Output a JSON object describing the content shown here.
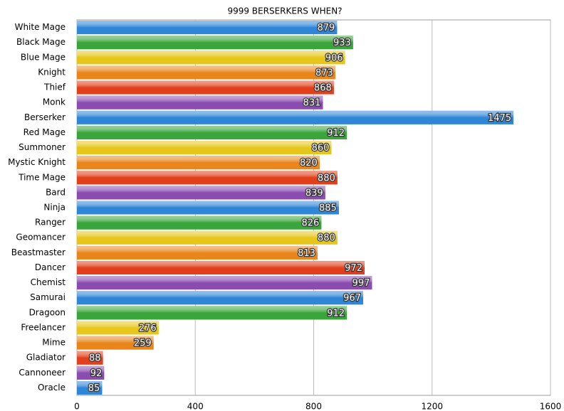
{
  "chart_data": {
    "type": "hbar",
    "title": "9999 BERSERKERS WHEN?",
    "categories": [
      "White Mage",
      "Black Mage",
      "Blue Mage",
      "Knight",
      "Thief",
      "Monk",
      "Berserker",
      "Red Mage",
      "Summoner",
      "Mystic Knight",
      "Time Mage",
      "Bard",
      "Ninja",
      "Ranger",
      "Geomancer",
      "Beastmaster",
      "Dancer",
      "Chemist",
      "Samurai",
      "Dragoon",
      "Freelancer",
      "Mime",
      "Gladiator",
      "Cannoneer",
      "Oracle"
    ],
    "values": [
      879,
      933,
      906,
      873,
      868,
      831,
      1475,
      912,
      860,
      820,
      880,
      839,
      885,
      826,
      880,
      813,
      972,
      997,
      967,
      912,
      276,
      259,
      88,
      92,
      85
    ],
    "colors": [
      "#2f86d6",
      "#3aa53a",
      "#e6c61a",
      "#e8861c",
      "#e2401c",
      "#8a4cb0",
      "#2f86d6",
      "#3aa53a",
      "#e6c61a",
      "#e8861c",
      "#e2401c",
      "#8a4cb0",
      "#2f86d6",
      "#3aa53a",
      "#e6c61a",
      "#e8861c",
      "#e2401c",
      "#8a4cb0",
      "#2f86d6",
      "#3aa53a",
      "#e6c61a",
      "#e8861c",
      "#e2401c",
      "#8a4cb0",
      "#2f86d6"
    ],
    "xlim": [
      0,
      1600
    ],
    "xticks": [
      0,
      400,
      800,
      1200,
      1600
    ],
    "grid": true
  }
}
